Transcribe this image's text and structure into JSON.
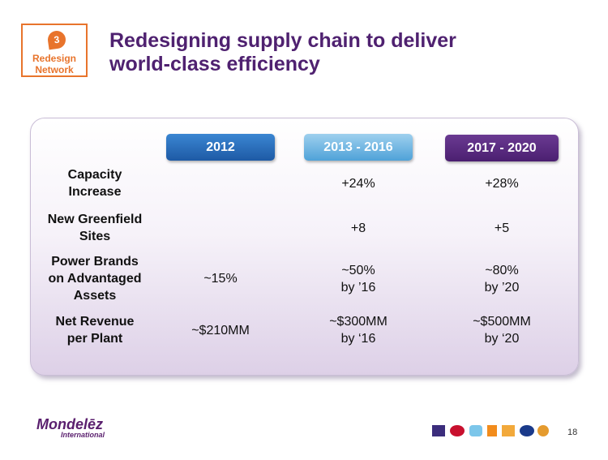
{
  "badge": {
    "number": "3",
    "label_line1": "Redesign",
    "label_line2": "Network"
  },
  "title": {
    "line1": "Redesigning supply chain to deliver",
    "line2": "world-class efficiency"
  },
  "columns": [
    "2012",
    "2013 - 2016",
    "2017 - 2020"
  ],
  "rows": [
    {
      "label_lines": [
        "Capacity",
        "Increase"
      ],
      "values": [
        [],
        [
          "+24%"
        ],
        [
          "+28%"
        ]
      ]
    },
    {
      "label_lines": [
        "New Greenfield",
        "Sites"
      ],
      "values": [
        [],
        [
          "+8"
        ],
        [
          "+5"
        ]
      ]
    },
    {
      "label_lines": [
        "Power Brands",
        "on Advantaged",
        "Assets"
      ],
      "values": [
        [
          "~15%"
        ],
        [
          "~50%",
          "by ’16"
        ],
        [
          "~80%",
          "by ’20"
        ]
      ]
    },
    {
      "label_lines": [
        "Net Revenue",
        "per Plant"
      ],
      "values": [
        [
          "~$210MM"
        ],
        [
          "~$300MM",
          "by ‘16"
        ],
        [
          "~$500MM",
          "by ‘20"
        ]
      ]
    }
  ],
  "footer": {
    "logo_text": "Mondelēz",
    "logo_sub": "International",
    "page_number": "18"
  },
  "colors": {
    "title": "#4f2170",
    "badge": "#e8742c"
  }
}
